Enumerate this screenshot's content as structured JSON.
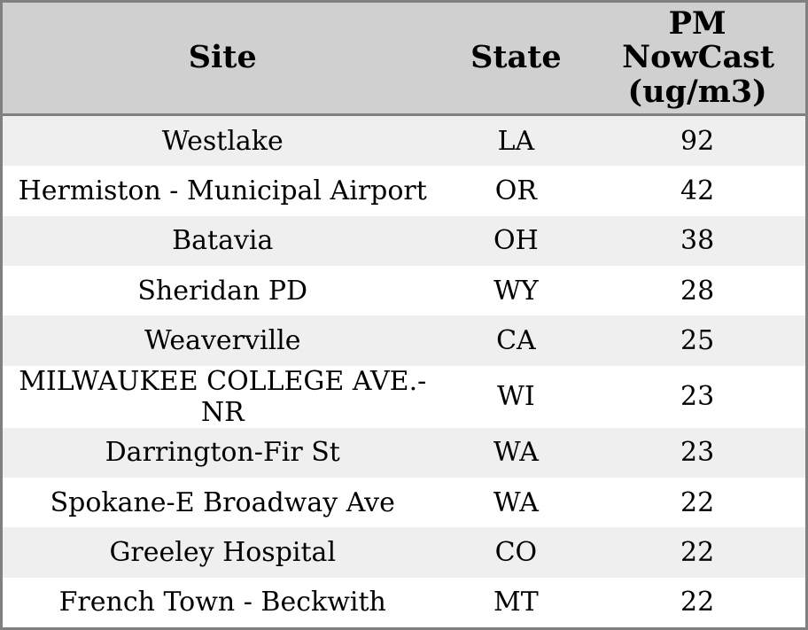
{
  "chart_data": {
    "type": "table",
    "columns": [
      "Site",
      "State",
      "PM NowCast (ug/m3)"
    ],
    "rows": [
      [
        "Westlake",
        "LA",
        92
      ],
      [
        "Hermiston - Municipal Airport",
        "OR",
        42
      ],
      [
        "Batavia",
        "OH",
        38
      ],
      [
        "Sheridan PD",
        "WY",
        28
      ],
      [
        "Weaverville",
        "CA",
        25
      ],
      [
        "MILWAUKEE COLLEGE AVE.-NR",
        "WI",
        23
      ],
      [
        "Darrington-Fir St",
        "WA",
        23
      ],
      [
        "Spokane-E Broadway Ave",
        "WA",
        22
      ],
      [
        "Greeley Hospital",
        "CO",
        22
      ],
      [
        "French Town - Beckwith",
        "MT",
        22
      ]
    ],
    "layout": {
      "header_position": "top",
      "row_striping": true,
      "text_align": "center"
    }
  },
  "colors": {
    "header-bg": "#d0d0d0",
    "row-odd-bg": "#efefef",
    "row-even-bg": "#ffffff",
    "border": "#808080",
    "text": "#000000"
  }
}
